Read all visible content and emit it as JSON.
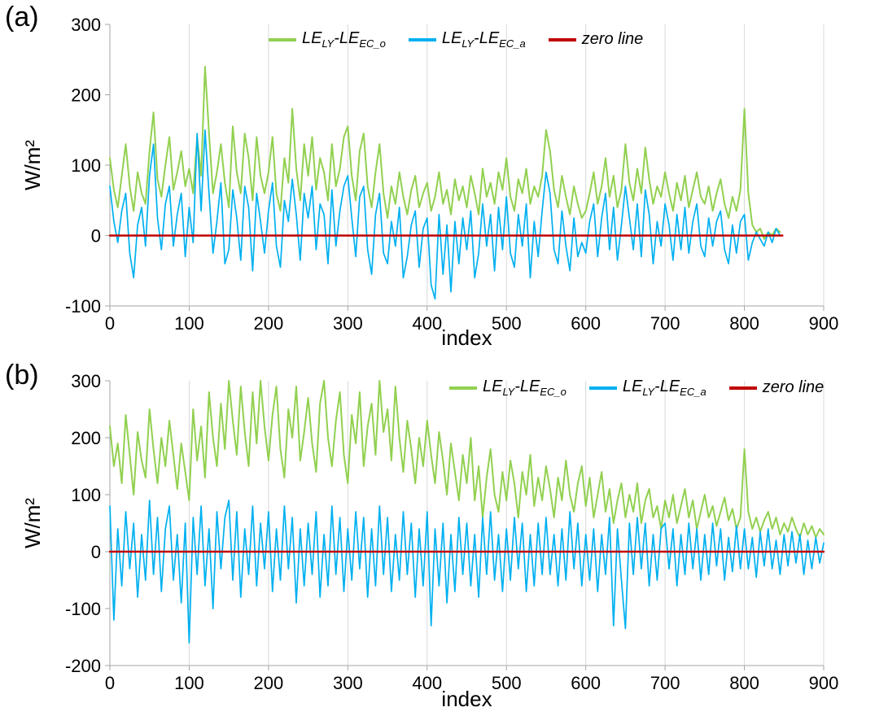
{
  "figure": {
    "background": "#ffffff"
  },
  "panels": [
    {
      "tag": "(a)"
    },
    {
      "tag": "(b)"
    }
  ],
  "colors": {
    "series_green": "#92d050",
    "series_blue": "#00b0f0",
    "zero_line": "#c00000",
    "gridline": "#d9d9d9",
    "axis": "#a6a6a6"
  },
  "chart_data": [
    {
      "type": "line",
      "panel": "a",
      "title": "",
      "xlabel": "index",
      "ylabel": "W/m²",
      "xlim": [
        0,
        900
      ],
      "ylim": [
        -100,
        300
      ],
      "xticks": [
        0,
        100,
        200,
        300,
        400,
        500,
        600,
        700,
        800,
        900
      ],
      "yticks": [
        -100,
        0,
        100,
        200,
        300
      ],
      "grid": "vertical",
      "legend_position": "top-center",
      "legend": [
        {
          "name": "LE_LY-LE_EC_o",
          "color": "#92d050",
          "parts": [
            [
              "t",
              "LE"
            ],
            [
              "s",
              "LY"
            ],
            [
              "t",
              "-LE"
            ],
            [
              "s",
              "EC_o"
            ]
          ]
        },
        {
          "name": "LE_LY-LE_EC_a",
          "color": "#00b0f0",
          "parts": [
            [
              "t",
              "LE"
            ],
            [
              "s",
              "LY"
            ],
            [
              "t",
              "-LE"
            ],
            [
              "s",
              "EC_a"
            ]
          ]
        },
        {
          "name": "zero line",
          "color": "#c00000",
          "parts": [
            [
              "t",
              "zero line"
            ]
          ]
        }
      ],
      "series": [
        {
          "name": "LE_LY-LE_EC_o",
          "color": "#92d050",
          "width": 2,
          "x_start": 0,
          "x_step": 5,
          "values": [
            110,
            65,
            40,
            85,
            130,
            70,
            35,
            90,
            60,
            45,
            120,
            175,
            80,
            55,
            100,
            140,
            65,
            90,
            120,
            70,
            95,
            60,
            140,
            85,
            240,
            145,
            60,
            90,
            130,
            75,
            40,
            155,
            90,
            60,
            145,
            110,
            50,
            140,
            85,
            60,
            90,
            140,
            60,
            35,
            110,
            75,
            180,
            95,
            50,
            130,
            85,
            140,
            65,
            110,
            90,
            50,
            130,
            70,
            95,
            140,
            155,
            85,
            50,
            120,
            145,
            70,
            40,
            90,
            130,
            60,
            25,
            70,
            45,
            90,
            55,
            30,
            65,
            85,
            40,
            60,
            75,
            35,
            55,
            90,
            45,
            65,
            30,
            80,
            50,
            70,
            40,
            85,
            60,
            30,
            95,
            55,
            75,
            45,
            90,
            65,
            110,
            55,
            35,
            80,
            60,
            95,
            45,
            70,
            55,
            85,
            150,
            120,
            65,
            40,
            85,
            55,
            30,
            70,
            45,
            25,
            35,
            60,
            90,
            45,
            70,
            110,
            55,
            85,
            40,
            65,
            130,
            75,
            50,
            95,
            60,
            125,
            80,
            45,
            70,
            55,
            90,
            60,
            35,
            75,
            50,
            85,
            40,
            65,
            90,
            55,
            45,
            70,
            35,
            60,
            80,
            45,
            25,
            55,
            35,
            65,
            180,
            60,
            15,
            5,
            10,
            -5,
            5,
            0,
            10,
            5
          ]
        },
        {
          "name": "LE_LY-LE_EC_a",
          "color": "#00b0f0",
          "width": 1.7,
          "x_start": 0,
          "x_step": 5,
          "values": [
            70,
            20,
            -10,
            35,
            60,
            -25,
            -60,
            15,
            40,
            -15,
            85,
            130,
            25,
            -20,
            45,
            70,
            -15,
            30,
            60,
            -30,
            40,
            -10,
            145,
            35,
            150,
            60,
            -25,
            20,
            75,
            -40,
            -20,
            65,
            25,
            -35,
            70,
            40,
            -50,
            60,
            20,
            -25,
            35,
            75,
            -15,
            -45,
            50,
            20,
            80,
            30,
            -35,
            60,
            25,
            70,
            -20,
            45,
            30,
            -40,
            65,
            -15,
            35,
            70,
            85,
            25,
            -30,
            55,
            70,
            -20,
            -55,
            30,
            60,
            -25,
            -40,
            20,
            -15,
            40,
            -60,
            -30,
            15,
            35,
            -45,
            10,
            25,
            -70,
            -90,
            30,
            -55,
            15,
            -80,
            20,
            -40,
            25,
            -20,
            35,
            -60,
            -25,
            45,
            -15,
            30,
            -50,
            40,
            -20,
            55,
            -25,
            -45,
            30,
            -15,
            45,
            -60,
            20,
            -30,
            35,
            90,
            60,
            -20,
            -40,
            35,
            -15,
            -50,
            25,
            -30,
            -10,
            -25,
            20,
            45,
            -30,
            25,
            60,
            -20,
            40,
            -35,
            15,
            70,
            25,
            -20,
            45,
            -30,
            65,
            30,
            -40,
            20,
            -15,
            45,
            15,
            -35,
            30,
            -20,
            40,
            -25,
            20,
            45,
            -15,
            -30,
            25,
            -15,
            20,
            35,
            -20,
            -40,
            15,
            -25,
            20,
            30,
            -35,
            -10,
            5,
            -5,
            -15,
            5,
            -10,
            10,
            0
          ]
        },
        {
          "name": "zero line",
          "color": "#c00000",
          "width": 2.5,
          "x": [
            0,
            848
          ],
          "y": [
            0,
            0
          ]
        }
      ]
    },
    {
      "type": "line",
      "panel": "b",
      "title": "",
      "xlabel": "index",
      "ylabel": "W/m²",
      "xlim": [
        0,
        900
      ],
      "ylim": [
        -200,
        300
      ],
      "xticks": [
        0,
        100,
        200,
        300,
        400,
        500,
        600,
        700,
        800,
        900
      ],
      "yticks": [
        -200,
        -100,
        0,
        100,
        200,
        300
      ],
      "grid": "vertical",
      "legend_position": "top-right",
      "legend": [
        {
          "name": "LE_LY-LE_EC_o",
          "color": "#92d050",
          "parts": [
            [
              "t",
              "LE"
            ],
            [
              "s",
              "LY"
            ],
            [
              "t",
              "-LE"
            ],
            [
              "s",
              "EC_o"
            ]
          ]
        },
        {
          "name": "LE_LY-LE_EC_a",
          "color": "#00b0f0",
          "parts": [
            [
              "t",
              "LE"
            ],
            [
              "s",
              "LY"
            ],
            [
              "t",
              "-LE"
            ],
            [
              "s",
              "EC_a"
            ]
          ]
        },
        {
          "name": "zero line",
          "color": "#c00000",
          "parts": [
            [
              "t",
              "zero line"
            ]
          ]
        }
      ],
      "series": [
        {
          "name": "LE_LY-LE_EC_o",
          "color": "#92d050",
          "width": 2,
          "x_start": 0,
          "x_step": 5,
          "values": [
            220,
            150,
            190,
            120,
            240,
            170,
            100,
            210,
            160,
            130,
            250,
            180,
            120,
            200,
            150,
            230,
            170,
            110,
            190,
            140,
            90,
            250,
            160,
            220,
            130,
            280,
            200,
            150,
            260,
            180,
            300,
            230,
            170,
            290,
            210,
            150,
            280,
            190,
            300,
            220,
            160,
            240,
            290,
            180,
            130,
            250,
            200,
            290,
            160,
            210,
            270,
            190,
            140,
            260,
            300,
            200,
            150,
            230,
            280,
            170,
            120,
            240,
            190,
            280,
            150,
            220,
            260,
            170,
            300,
            210,
            250,
            160,
            290,
            200,
            140,
            230,
            180,
            120,
            200,
            150,
            230,
            170,
            120,
            210,
            160,
            100,
            190,
            140,
            90,
            170,
            120,
            200,
            90,
            150,
            60,
            130,
            180,
            100,
            70,
            140,
            90,
            160,
            120,
            60,
            140,
            100,
            170,
            80,
            130,
            90,
            150,
            110,
            60,
            130,
            90,
            160,
            100,
            70,
            120,
            150,
            80,
            130,
            60,
            100,
            140,
            70,
            110,
            50,
            90,
            120,
            60,
            100,
            70,
            120,
            50,
            90,
            110,
            60,
            80,
            40,
            90,
            60,
            100,
            50,
            80,
            110,
            60,
            90,
            40,
            70,
            100,
            60,
            80,
            45,
            70,
            95,
            55,
            75,
            40,
            60,
            180,
            70,
            40,
            60,
            35,
            55,
            70,
            40,
            60,
            30,
            50,
            35,
            60,
            40,
            25,
            50,
            30,
            45,
            25,
            40,
            30
          ]
        },
        {
          "name": "LE_LY-LE_EC_a",
          "color": "#00b0f0",
          "width": 1.7,
          "x_start": 0,
          "x_step": 5,
          "values": [
            80,
            -120,
            40,
            -60,
            70,
            -30,
            50,
            -80,
            30,
            -50,
            90,
            -40,
            60,
            -70,
            40,
            80,
            -50,
            30,
            -90,
            50,
            -160,
            60,
            -40,
            80,
            -60,
            40,
            -100,
            70,
            -30,
            60,
            90,
            -50,
            70,
            -80,
            40,
            -40,
            80,
            -60,
            50,
            -30,
            70,
            -70,
            40,
            -50,
            80,
            -30,
            60,
            -90,
            40,
            -60,
            50,
            -40,
            70,
            -80,
            30,
            -60,
            80,
            -40,
            60,
            -70,
            40,
            -50,
            70,
            -30,
            60,
            -80,
            40,
            -60,
            80,
            -40,
            60,
            -70,
            30,
            -50,
            70,
            -40,
            50,
            -80,
            40,
            -60,
            70,
            -130,
            40,
            -60,
            50,
            -90,
            30,
            -70,
            60,
            -40,
            50,
            -60,
            30,
            -80,
            60,
            -40,
            70,
            -50,
            30,
            -70,
            40,
            -50,
            60,
            -30,
            50,
            -70,
            30,
            -60,
            50,
            -40,
            60,
            -40,
            30,
            -60,
            40,
            -50,
            70,
            -30,
            50,
            -60,
            30,
            -50,
            40,
            -70,
            30,
            -40,
            60,
            -130,
            40,
            -50,
            -135,
            50,
            -40,
            60,
            -30,
            50,
            -60,
            30,
            -50,
            40,
            50,
            -30,
            40,
            -60,
            30,
            -40,
            50,
            -30,
            40,
            -50,
            30,
            -40,
            50,
            -25,
            40,
            -50,
            25,
            -35,
            45,
            -30,
            40,
            -30,
            25,
            -45,
            35,
            -25,
            40,
            -30,
            20,
            -40,
            30,
            -25,
            35,
            -20,
            30,
            -40,
            20,
            -30,
            25,
            -20,
            15
          ]
        },
        {
          "name": "zero line",
          "color": "#c00000",
          "width": 2.5,
          "x": [
            0,
            900
          ],
          "y": [
            0,
            0
          ]
        }
      ]
    }
  ]
}
